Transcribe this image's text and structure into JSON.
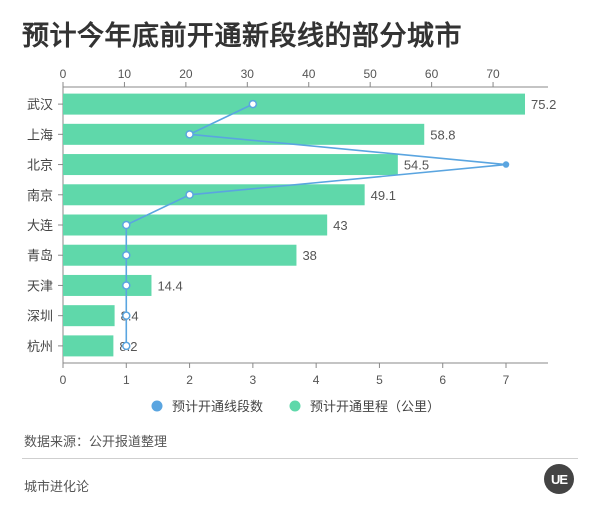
{
  "title": "预计今年底前开通新段线的部分城市",
  "source_text": "数据来源：公开报道整理",
  "footer_text": "城市进化论",
  "logo_text": "UE",
  "colors": {
    "bar": "#5fd8aa",
    "line": "#5aa5e0",
    "axis": "#888888",
    "text": "#555555"
  },
  "chart_data": {
    "type": "bar",
    "orientation": "horizontal",
    "categories": [
      "武汉",
      "上海",
      "北京",
      "南京",
      "大连",
      "青岛",
      "天津",
      "深圳",
      "杭州"
    ],
    "series": [
      {
        "name": "预计开通里程（公里）",
        "type": "bar",
        "axis": "top",
        "values": [
          75.2,
          58.8,
          54.5,
          49.1,
          43,
          38,
          14.4,
          8.4,
          8.2
        ],
        "labels": [
          "75.2",
          "58.8",
          "54.5",
          "49.1",
          "43",
          "38",
          "14.4",
          "8.4",
          "8.2"
        ]
      },
      {
        "name": "预计开通线段数",
        "type": "line",
        "axis": "bottom",
        "values": [
          3,
          2,
          7,
          2,
          1,
          1,
          1,
          1,
          1
        ]
      }
    ],
    "top_axis": {
      "min": 0,
      "max": 75.2,
      "ticks": [
        0,
        10,
        20,
        30,
        40,
        50,
        60,
        70
      ]
    },
    "bottom_axis": {
      "min": 0,
      "max": 7.3,
      "ticks": [
        0,
        1,
        2,
        3,
        4,
        5,
        6,
        7
      ]
    },
    "legend_position": "bottom",
    "grid": false
  }
}
